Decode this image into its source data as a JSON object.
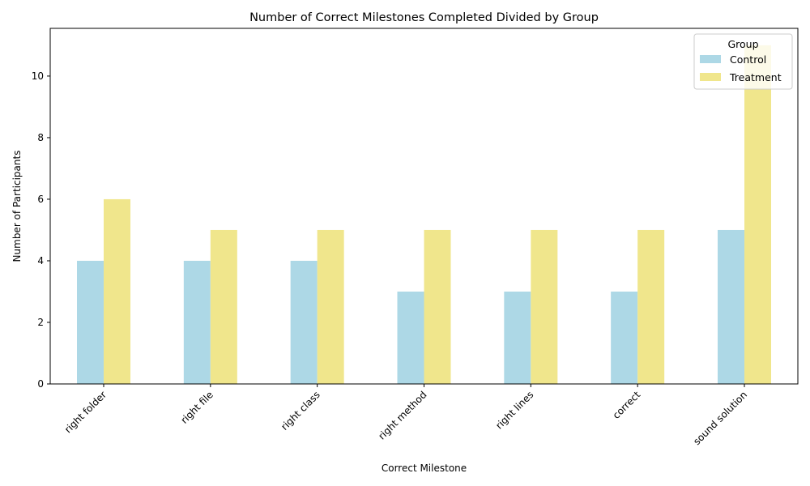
{
  "chart_data": {
    "type": "bar",
    "title": "Number of Correct Milestones Completed Divided by Group",
    "xlabel": "Correct Milestone",
    "ylabel": "Number of Participants",
    "categories": [
      "right folder",
      "right file",
      "right class",
      "right method",
      "right lines",
      "correct",
      "sound solution"
    ],
    "series": [
      {
        "name": "Control",
        "values": [
          4,
          4,
          4,
          3,
          3,
          3,
          5
        ],
        "color": "#add8e6"
      },
      {
        "name": "Treatment",
        "values": [
          6,
          5,
          5,
          5,
          5,
          5,
          11
        ],
        "color": "#f0e68c"
      }
    ],
    "ylim": [
      0,
      11.55
    ],
    "yticks": [
      0,
      2,
      4,
      6,
      8,
      10
    ],
    "grid": false,
    "legend": {
      "title": "Group",
      "position": "top-right"
    }
  }
}
